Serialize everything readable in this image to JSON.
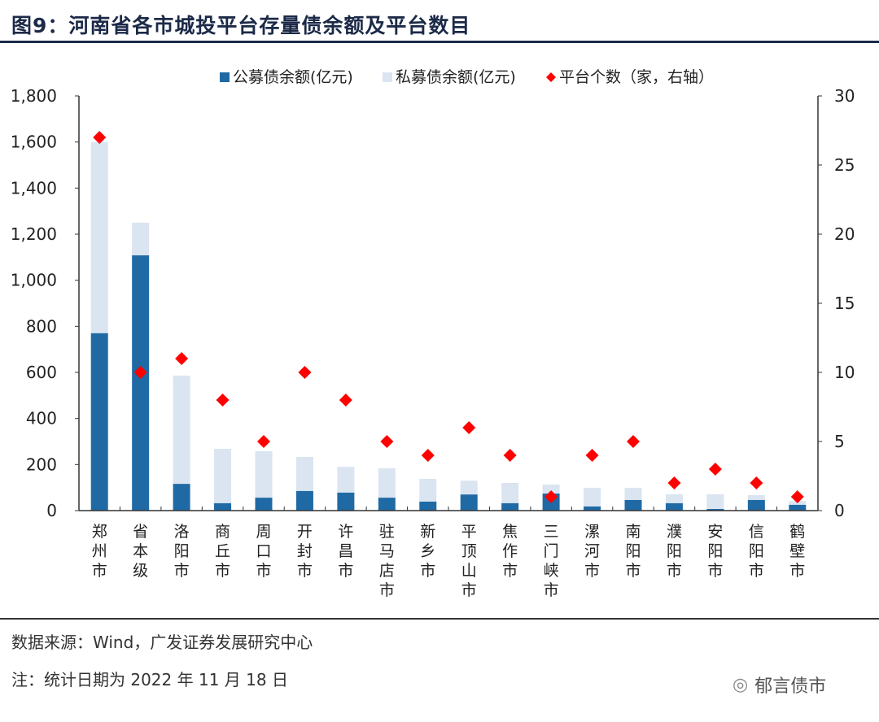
{
  "title": "图9：河南省各市城投平台存量债余额及平台数目",
  "footer": {
    "source": "数据来源：Wind，广发证券发展研究中心",
    "note": "注：统计日期为 2022 年 11 月 18 日",
    "watermark": "郁言债市"
  },
  "chart_data": {
    "type": "bar",
    "stacked": true,
    "categories": [
      "郑州市",
      "省本级",
      "洛阳市",
      "商丘市",
      "周口市",
      "开封市",
      "许昌市",
      "驻马店市",
      "新乡市",
      "平顶山市",
      "焦作市",
      "三门峡市",
      "漯河市",
      "南阳市",
      "濮阳市",
      "安阳市",
      "信阳市",
      "鹤壁市"
    ],
    "series": [
      {
        "name": "公募债余额(亿元)",
        "axis": "left",
        "kind": "bar",
        "color": "#1f6aa5",
        "values": [
          770,
          1108,
          116,
          32,
          56,
          85,
          78,
          56,
          39,
          70,
          32,
          74,
          18,
          46,
          32,
          7,
          46,
          25
        ]
      },
      {
        "name": "私募债余额(亿元)",
        "axis": "left",
        "kind": "bar",
        "color": "#dae5f1",
        "values": [
          830,
          142,
          470,
          236,
          202,
          148,
          112,
          128,
          99,
          60,
          88,
          39,
          81,
          53,
          39,
          64,
          21,
          17
        ]
      },
      {
        "name": "平台个数（家，右轴）",
        "axis": "right",
        "kind": "scatter",
        "marker": "diamond",
        "color": "#ff0000",
        "values": [
          27,
          10,
          11,
          8,
          5,
          10,
          8,
          5,
          4,
          6,
          4,
          1,
          4,
          5,
          2,
          3,
          2,
          1
        ]
      }
    ],
    "y_left": {
      "range": [
        0,
        1800
      ],
      "ticks": [
        "0",
        "200",
        "400",
        "600",
        "800",
        "1,000",
        "1,200",
        "1,400",
        "1,600",
        "1,800"
      ]
    },
    "y_right": {
      "range": [
        0,
        30
      ],
      "ticks": [
        "0",
        "5",
        "10",
        "15",
        "20",
        "25",
        "30"
      ]
    },
    "grid": false,
    "legend": "top"
  }
}
